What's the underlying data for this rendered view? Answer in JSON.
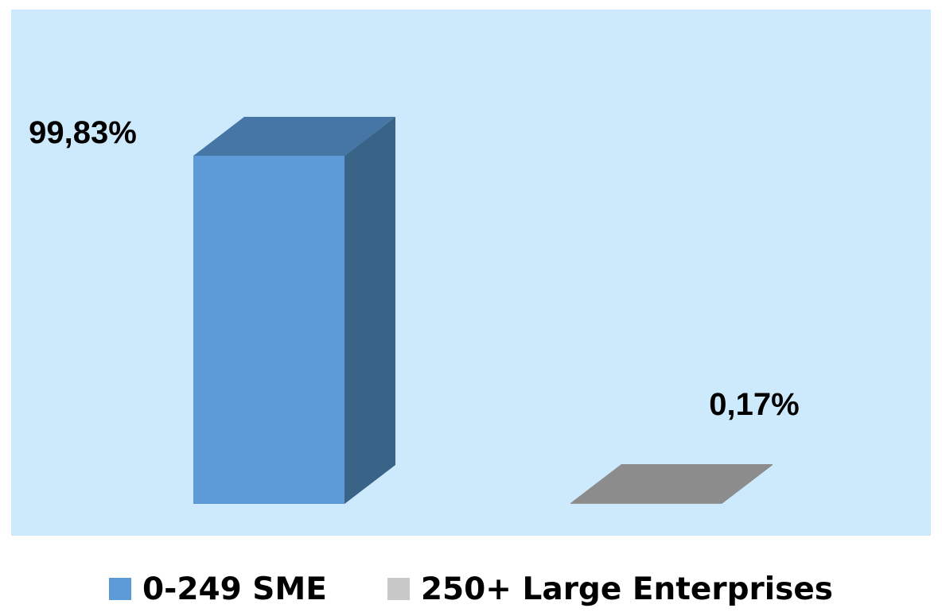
{
  "chart_data": {
    "type": "bar",
    "style": "3d-column",
    "categories": [
      "0-249 SME",
      "250+ Large Enterprises"
    ],
    "values": [
      99.83,
      0.17
    ],
    "data_labels": [
      "99,83%",
      "0,17%"
    ],
    "ylim": [
      0,
      100
    ],
    "grid": false,
    "legend_position": "bottom",
    "colors": {
      "plot_background": "#cdeafd",
      "series": [
        "#5d9bd8",
        "#9a9a9a"
      ],
      "series_top": [
        "#4576a6",
        "#8c8c8c"
      ],
      "series_side": [
        "#3a6487",
        "#777777"
      ]
    }
  },
  "legend": {
    "items": [
      {
        "label": "0-249 SME",
        "color": "#5d9bd8"
      },
      {
        "label": "250+ Large Enterprises",
        "color": "#c8c8c8"
      }
    ]
  }
}
